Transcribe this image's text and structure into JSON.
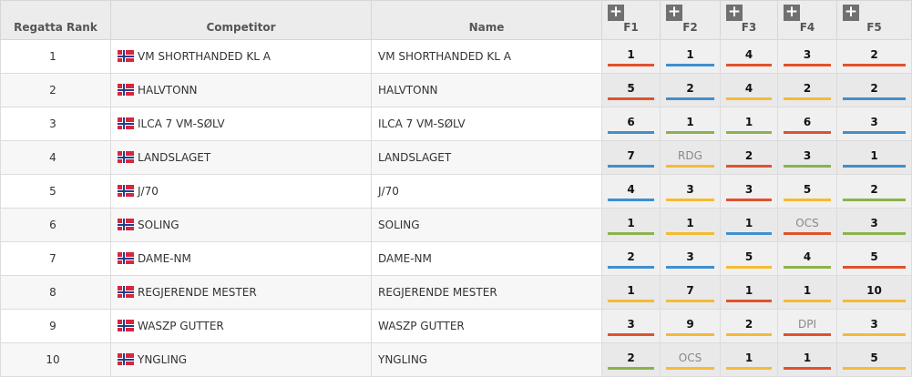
{
  "headers": {
    "rank": "Regatta Rank",
    "competitor": "Competitor",
    "name": "Name",
    "races": [
      "F1",
      "F2",
      "F3",
      "F4",
      "F5"
    ]
  },
  "colors": {
    "red": "#e0522d",
    "blue": "#3f8fcf",
    "yellow": "#f5bb32",
    "green": "#8ab34d"
  },
  "rows": [
    {
      "rank": "1",
      "competitor": "VM SHORTHANDED KL A",
      "name": "VM SHORTHANDED KL A",
      "races": [
        {
          "v": "1",
          "c": "red"
        },
        {
          "v": "1",
          "c": "blue"
        },
        {
          "v": "4",
          "c": "red"
        },
        {
          "v": "3",
          "c": "red"
        },
        {
          "v": "2",
          "c": "red"
        }
      ]
    },
    {
      "rank": "2",
      "competitor": "HALVTONN",
      "name": "HALVTONN",
      "races": [
        {
          "v": "5",
          "c": "red"
        },
        {
          "v": "2",
          "c": "blue"
        },
        {
          "v": "4",
          "c": "yellow"
        },
        {
          "v": "2",
          "c": "yellow"
        },
        {
          "v": "2",
          "c": "blue"
        }
      ]
    },
    {
      "rank": "3",
      "competitor": "ILCA 7 VM-SØLV",
      "name": "ILCA 7 VM-SØLV",
      "races": [
        {
          "v": "6",
          "c": "blue"
        },
        {
          "v": "1",
          "c": "green"
        },
        {
          "v": "1",
          "c": "green"
        },
        {
          "v": "6",
          "c": "red"
        },
        {
          "v": "3",
          "c": "blue"
        }
      ]
    },
    {
      "rank": "4",
      "competitor": "LANDSLAGET",
      "name": "LANDSLAGET",
      "races": [
        {
          "v": "7",
          "c": "blue"
        },
        {
          "v": "RDG",
          "c": "yellow",
          "code": true
        },
        {
          "v": "2",
          "c": "red"
        },
        {
          "v": "3",
          "c": "green"
        },
        {
          "v": "1",
          "c": "blue"
        }
      ]
    },
    {
      "rank": "5",
      "competitor": "J/70",
      "name": "J/70",
      "races": [
        {
          "v": "4",
          "c": "blue"
        },
        {
          "v": "3",
          "c": "yellow"
        },
        {
          "v": "3",
          "c": "red"
        },
        {
          "v": "5",
          "c": "yellow"
        },
        {
          "v": "2",
          "c": "green"
        }
      ]
    },
    {
      "rank": "6",
      "competitor": "SOLING",
      "name": "SOLING",
      "races": [
        {
          "v": "1",
          "c": "green"
        },
        {
          "v": "1",
          "c": "yellow"
        },
        {
          "v": "1",
          "c": "blue"
        },
        {
          "v": "OCS",
          "c": "red",
          "code": true
        },
        {
          "v": "3",
          "c": "green"
        }
      ]
    },
    {
      "rank": "7",
      "competitor": "DAME-NM",
      "name": "DAME-NM",
      "races": [
        {
          "v": "2",
          "c": "blue"
        },
        {
          "v": "3",
          "c": "blue"
        },
        {
          "v": "5",
          "c": "yellow"
        },
        {
          "v": "4",
          "c": "green"
        },
        {
          "v": "5",
          "c": "red"
        }
      ]
    },
    {
      "rank": "8",
      "competitor": "REGJERENDE MESTER",
      "name": "REGJERENDE MESTER",
      "races": [
        {
          "v": "1",
          "c": "yellow"
        },
        {
          "v": "7",
          "c": "yellow"
        },
        {
          "v": "1",
          "c": "red"
        },
        {
          "v": "1",
          "c": "yellow"
        },
        {
          "v": "10",
          "c": "yellow"
        }
      ]
    },
    {
      "rank": "9",
      "competitor": "WASZP GUTTER",
      "name": "WASZP GUTTER",
      "races": [
        {
          "v": "3",
          "c": "red"
        },
        {
          "v": "9",
          "c": "yellow"
        },
        {
          "v": "2",
          "c": "yellow"
        },
        {
          "v": "DPI",
          "c": "red",
          "code": true
        },
        {
          "v": "3",
          "c": "yellow"
        }
      ]
    },
    {
      "rank": "10",
      "competitor": "YNGLING",
      "name": "YNGLING",
      "races": [
        {
          "v": "2",
          "c": "green"
        },
        {
          "v": "OCS",
          "c": "yellow",
          "code": true
        },
        {
          "v": "1",
          "c": "yellow"
        },
        {
          "v": "1",
          "c": "red"
        },
        {
          "v": "5",
          "c": "yellow"
        }
      ]
    }
  ]
}
